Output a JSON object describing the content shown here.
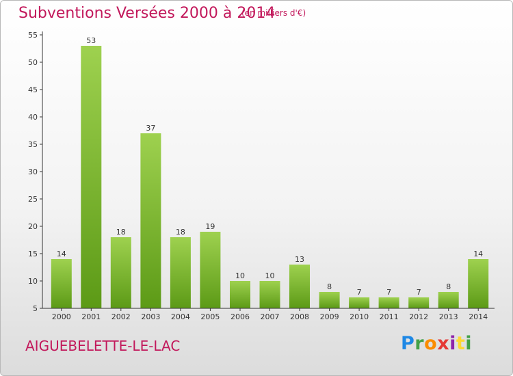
{
  "header": {
    "title": "Subventions Versées 2000 à 2014",
    "unit": "(en milliers d'€)"
  },
  "footer": {
    "place": "AIGUEBELETTE-LE-LAC",
    "brand": [
      "P",
      "r",
      "o",
      "x",
      "i",
      "t",
      "i"
    ]
  },
  "chart_data": {
    "type": "bar",
    "title": "Subventions Versées 2000 à 2014",
    "unit_label": "(en milliers d'€)",
    "categories": [
      "2000",
      "2001",
      "2002",
      "2003",
      "2004",
      "2005",
      "2006",
      "2007",
      "2008",
      "2009",
      "2010",
      "2011",
      "2012",
      "2013",
      "2014"
    ],
    "values": [
      14,
      53,
      18,
      37,
      18,
      19,
      10,
      10,
      13,
      8,
      7,
      7,
      7,
      8,
      14
    ],
    "ylim": [
      5,
      55
    ],
    "yticks": [
      5,
      10,
      15,
      20,
      25,
      30,
      35,
      40,
      45,
      50,
      55
    ],
    "grid": false,
    "colors": {
      "bar_top": "#9ed14f",
      "bar_bottom": "#5c9a16",
      "axis": "#333333",
      "title": "#c2185b"
    }
  }
}
